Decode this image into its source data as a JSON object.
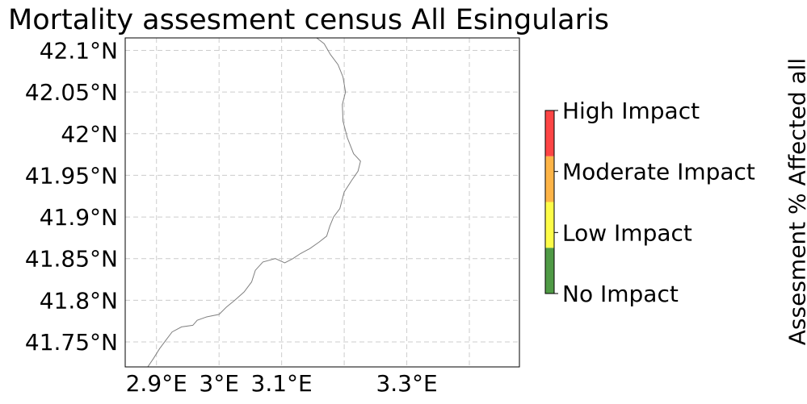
{
  "title": "Mortality assesment census All Esingularis",
  "map": {
    "lon_range": [
      2.85,
      3.48
    ],
    "lat_range": [
      41.72,
      42.115
    ],
    "lon_ticks": [
      {
        "value": 2.9,
        "label": "2.9°E"
      },
      {
        "value": 3.0,
        "label": "3°E"
      },
      {
        "value": 3.1,
        "label": "3.1°E"
      },
      {
        "value": 3.2,
        "label": ""
      },
      {
        "value": 3.3,
        "label": "3.3°E"
      },
      {
        "value": 3.4,
        "label": ""
      }
    ],
    "lat_ticks": [
      {
        "value": 42.1,
        "label": "42.1°N"
      },
      {
        "value": 42.05,
        "label": "42.05°N"
      },
      {
        "value": 42.0,
        "label": "42°N"
      },
      {
        "value": 41.95,
        "label": "41.95°N"
      },
      {
        "value": 41.9,
        "label": "41.9°N"
      },
      {
        "value": 41.85,
        "label": "41.85°N"
      },
      {
        "value": 41.8,
        "label": "41.8°N"
      },
      {
        "value": 41.75,
        "label": "41.75°N"
      }
    ],
    "gridlines": true,
    "coastline": [
      [
        2.886,
        41.72
      ],
      [
        2.895,
        41.73
      ],
      [
        2.905,
        41.742
      ],
      [
        2.915,
        41.752
      ],
      [
        2.925,
        41.762
      ],
      [
        2.94,
        41.768
      ],
      [
        2.958,
        41.77
      ],
      [
        2.965,
        41.776
      ],
      [
        2.98,
        41.78
      ],
      [
        3.0,
        41.783
      ],
      [
        3.012,
        41.792
      ],
      [
        3.025,
        41.8
      ],
      [
        3.04,
        41.81
      ],
      [
        3.052,
        41.822
      ],
      [
        3.058,
        41.836
      ],
      [
        3.07,
        41.846
      ],
      [
        3.09,
        41.85
      ],
      [
        3.105,
        41.845
      ],
      [
        3.118,
        41.85
      ],
      [
        3.13,
        41.856
      ],
      [
        3.145,
        41.862
      ],
      [
        3.16,
        41.87
      ],
      [
        3.172,
        41.877
      ],
      [
        3.177,
        41.889
      ],
      [
        3.183,
        41.9
      ],
      [
        3.193,
        41.91
      ],
      [
        3.2,
        41.93
      ],
      [
        3.212,
        41.944
      ],
      [
        3.222,
        41.955
      ],
      [
        3.226,
        41.967
      ],
      [
        3.215,
        41.976
      ],
      [
        3.205,
        41.995
      ],
      [
        3.198,
        42.015
      ],
      [
        3.197,
        42.035
      ],
      [
        3.202,
        42.05
      ],
      [
        3.198,
        42.068
      ],
      [
        3.19,
        42.083
      ],
      [
        3.178,
        42.095
      ],
      [
        3.168,
        42.108
      ],
      [
        3.156,
        42.115
      ]
    ],
    "coast_color": "#808080"
  },
  "colorbar": {
    "title": "Assesment % Affected all",
    "bins": [
      {
        "label": "No Impact",
        "color": "#4f9a45"
      },
      {
        "label": "Low Impact",
        "color": "#fdfc48"
      },
      {
        "label": "Moderate Impact",
        "color": "#fdb447"
      },
      {
        "label": "High Impact",
        "color": "#fd4545"
      }
    ]
  }
}
